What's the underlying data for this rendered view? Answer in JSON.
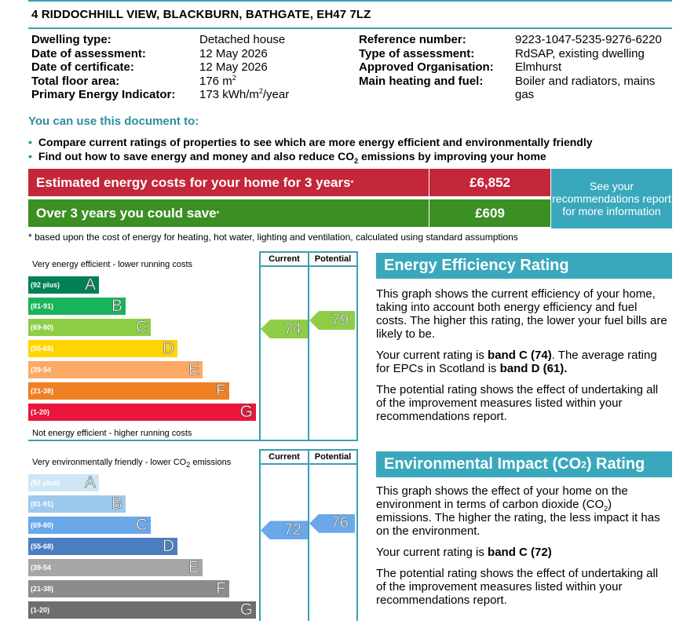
{
  "address": "4 RIDDOCHHILL VIEW, BLACKBURN, BATHGATE, EH47 7LZ",
  "details_left": [
    {
      "label": "Dwelling type:",
      "value": "Detached house"
    },
    {
      "label": "Date of assessment:",
      "value": "12 May 2026"
    },
    {
      "label": "Date of certificate:",
      "value": "12 May 2026"
    },
    {
      "label": "Total floor area:",
      "value": "176 m",
      "value_sup": "2"
    },
    {
      "label": "Primary Energy Indicator:",
      "value": "173 kWh/m",
      "value_sup": "2",
      "value_after": "/year"
    }
  ],
  "details_right": [
    {
      "label": "Reference number:",
      "value": "9223-1047-5235-9276-6220"
    },
    {
      "label": "Type of assessment:",
      "value": "RdSAP, existing dwelling"
    },
    {
      "label": "Approved Organisation:",
      "value": "Elmhurst"
    },
    {
      "label": "Main heating and fuel:",
      "value": "Boiler and radiators, mains",
      "value_line2": "gas"
    }
  ],
  "use_title": "You can use this document to:",
  "bullets": [
    {
      "text": "Compare current ratings of properties to see which are more energy efficient and environmentally friendly"
    },
    {
      "text_before": "Find out how to save energy and money and also reduce CO",
      "text_sub": "2",
      "text_after": " emissions by improving your home"
    }
  ],
  "costs": {
    "estimated_label": "Estimated energy costs for your home for 3 years",
    "estimated_value": "£6,852",
    "save_label": "Over 3 years you could save",
    "save_value": "£609",
    "asterisk": "*",
    "see_box": "See your recommendations report for more information",
    "footnote": "* based upon the cost of energy for heating, hot water, lighting and ventilation, calculated using standard assumptions"
  },
  "energy_chart": {
    "top_label": "Very energy efficient - lower running costs",
    "bottom_label": "Not energy efficient - higher running costs",
    "col_current": "Current",
    "col_potential": "Potential",
    "bands": [
      {
        "range": "(92 plus)",
        "letter": "A",
        "color": "#008054"
      },
      {
        "range": "(81-91)",
        "letter": "B",
        "color": "#19b459"
      },
      {
        "range": "(69-80)",
        "letter": "C",
        "color": "#8dce46"
      },
      {
        "range": "(55-68)",
        "letter": "D",
        "color": "#ffd500"
      },
      {
        "range": "(39-54",
        "letter": "E",
        "color": "#fcaa65"
      },
      {
        "range": "(21-38)",
        "letter": "F",
        "color": "#ef8023"
      },
      {
        "range": "(1-20)",
        "letter": "G",
        "color": "#e9153b"
      }
    ],
    "current": "74",
    "potential": "79",
    "arrow_color": "#8dce46"
  },
  "env_chart": {
    "top_label_before": "Very environmentally friendly - lower CO",
    "top_label_sub": "2",
    "top_label_after": " emissions",
    "col_current": "Current",
    "col_potential": "Potential",
    "bands": [
      {
        "range": "(92 plus)",
        "letter": "A",
        "color": "#cfe6f7"
      },
      {
        "range": "(81-91)",
        "letter": "B",
        "color": "#9dc9ee"
      },
      {
        "range": "(69-80)",
        "letter": "C",
        "color": "#6aa8ea"
      },
      {
        "range": "(55-68)",
        "letter": "D",
        "color": "#4c7fc2"
      },
      {
        "range": "(39-54",
        "letter": "E",
        "color": "#a6a6a6"
      },
      {
        "range": "(21-38)",
        "letter": "F",
        "color": "#8c8c8c"
      },
      {
        "range": "(1-20)",
        "letter": "G",
        "color": "#6e6e6e"
      }
    ],
    "current": "72",
    "potential": "76",
    "arrow_color": "#6aa8ea"
  },
  "eer_panel": {
    "title": "Energy Efficiency Rating",
    "p1": "This graph shows the current efficiency of your home, taking into account both energy efficiency and fuel costs. The higher this rating, the lower your fuel bills are likely to be.",
    "p2_before": "Your current rating is ",
    "p2_bold": "band C (74)",
    "p2_middle": ". The average rating for EPCs in Scotland is ",
    "p2_bold2": "band D (61).",
    "p3": "The potential rating shows the effect of undertaking all of the improvement measures listed within your recommendations report."
  },
  "eir_panel": {
    "title_before": "Environmental Impact (CO",
    "title_sub": "2",
    "title_after": ") Rating",
    "p1_before": "This graph shows the effect of your home on the environment in terms of carbon dioxide (CO",
    "p1_sub": "2",
    "p1_after": ") emissions. The higher the rating, the less impact it has on the environment.",
    "p2_before": "Your current rating is ",
    "p2_bold": "band C (72)",
    "p3": "The potential rating shows the effect of undertaking all of the improvement measures listed within your recommendations report."
  },
  "colors": {
    "accent": "#3aa8bc",
    "cost_red": "#c4263a",
    "cost_green": "#3c8f22"
  }
}
